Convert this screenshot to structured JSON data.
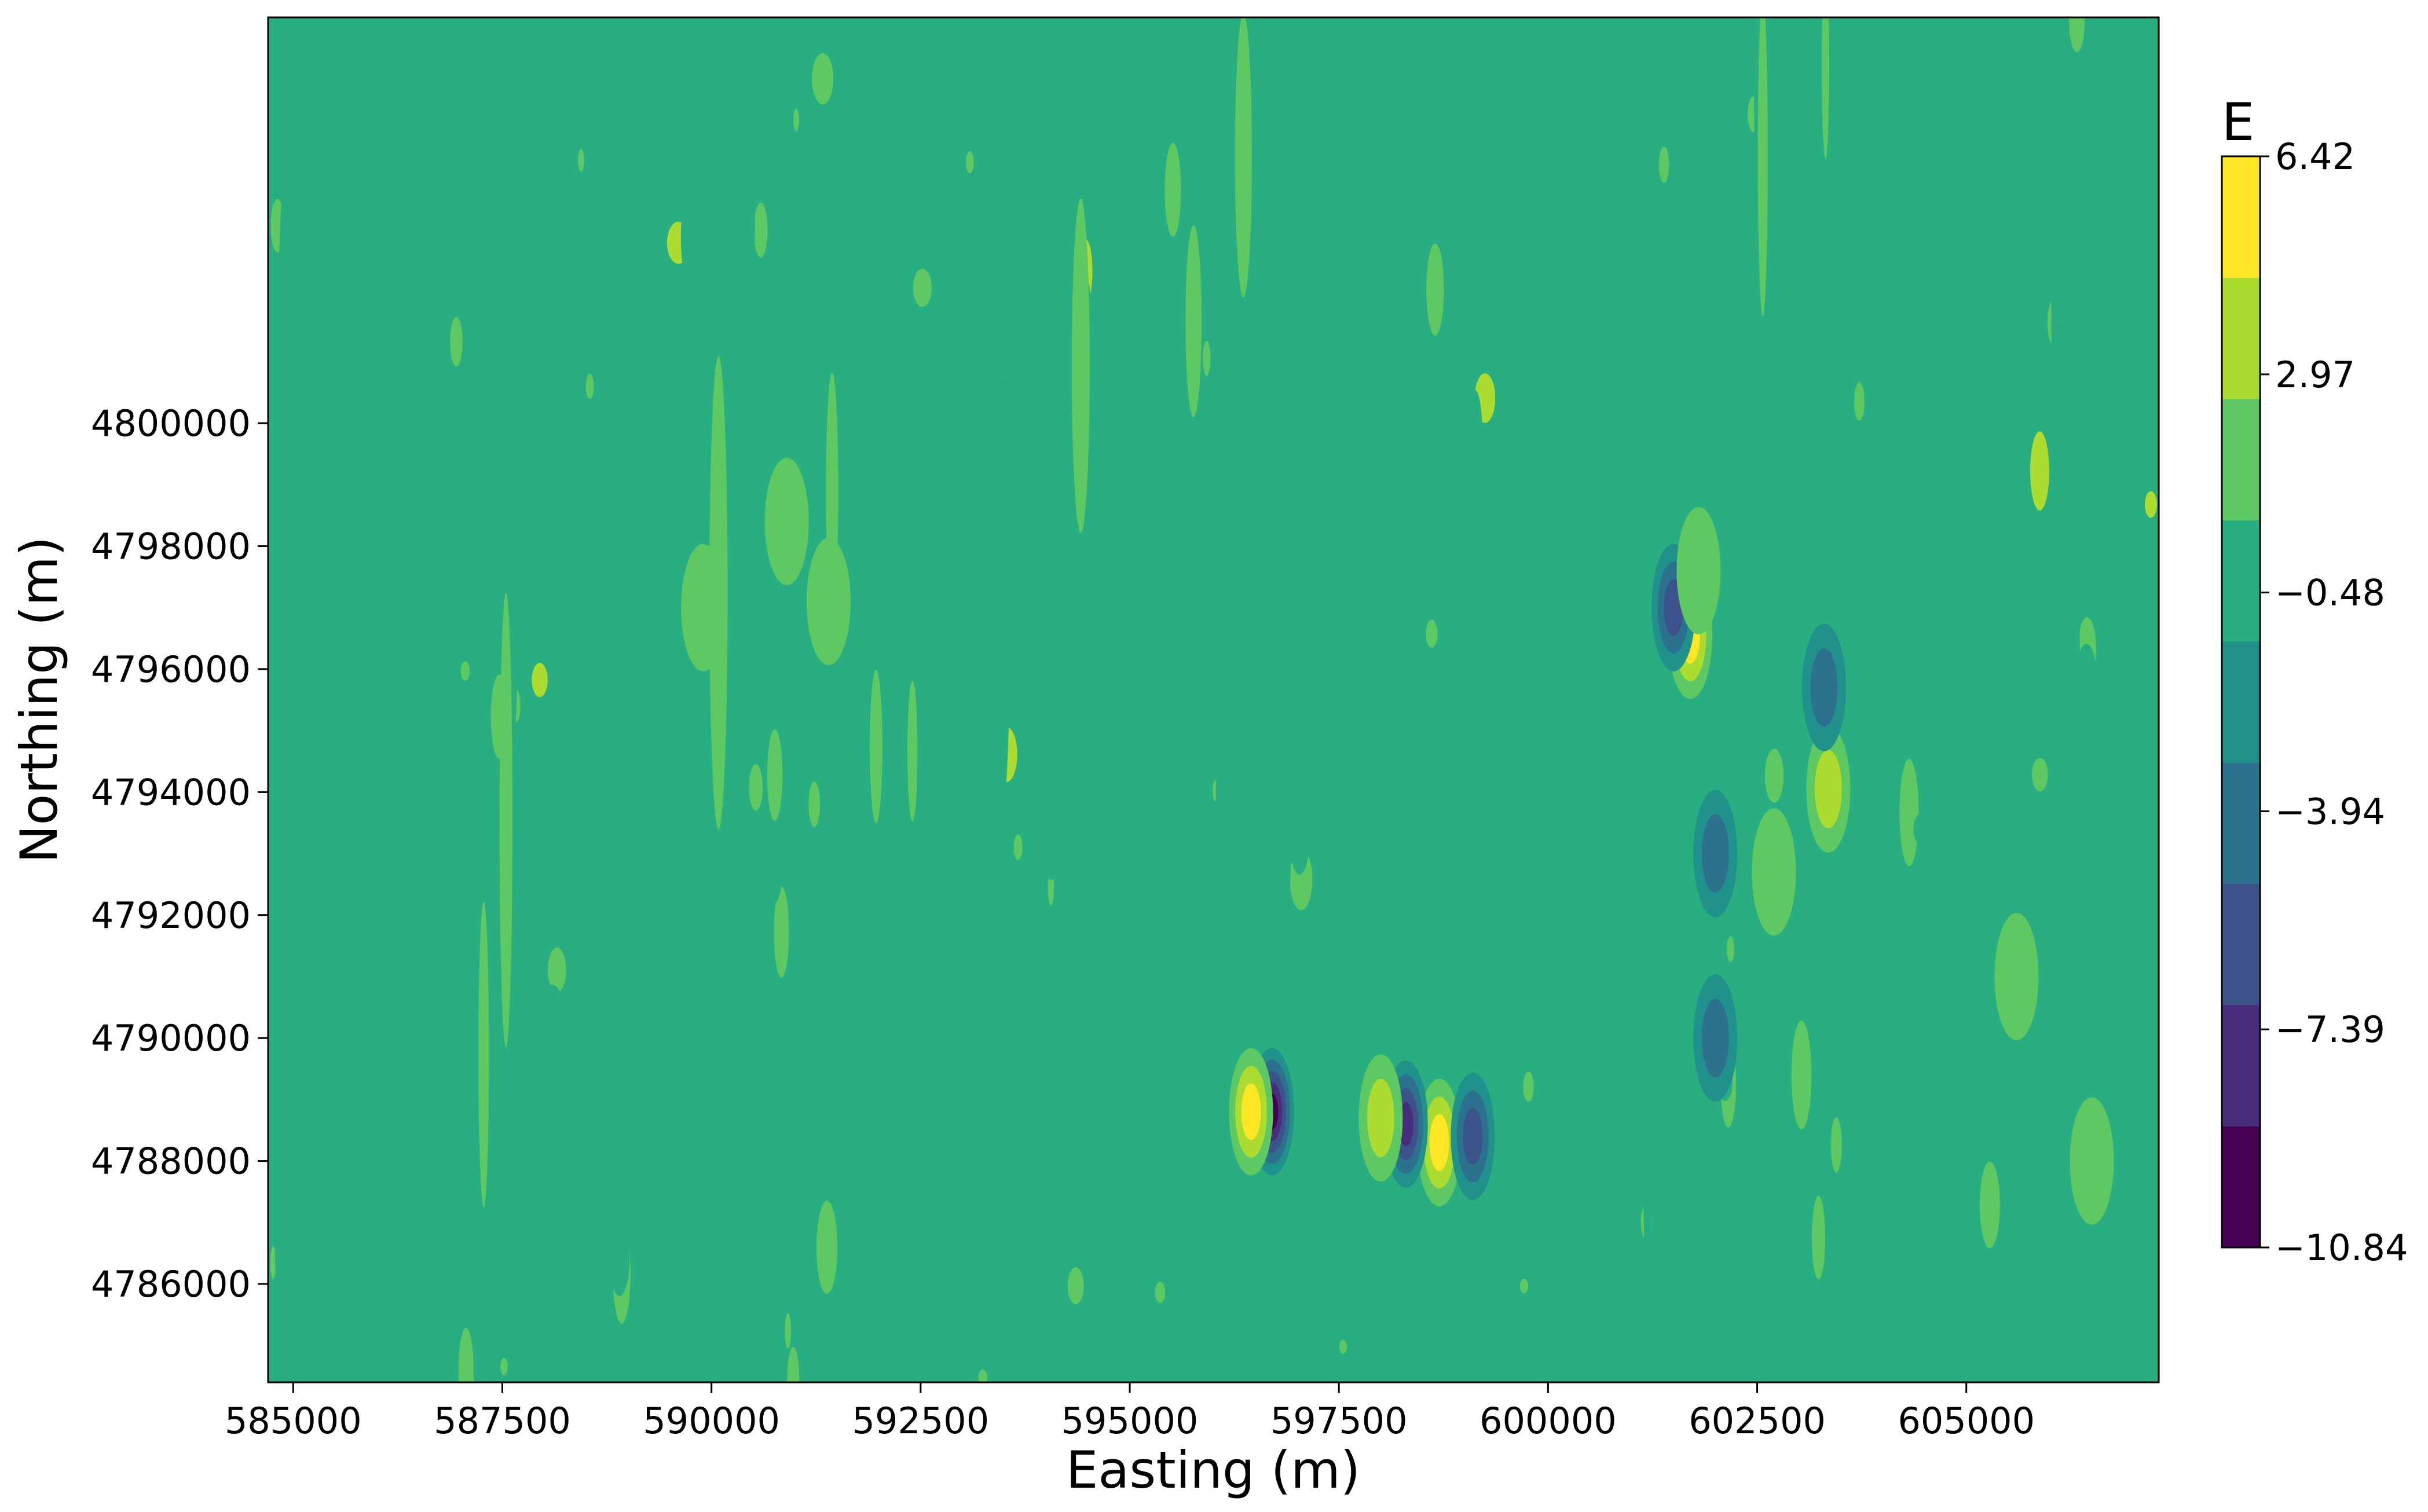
{
  "chart_data": {
    "type": "heatmap",
    "subtype": "filled-contour",
    "title": "",
    "xlabel": "Easting (m)",
    "ylabel": "Northing (m)",
    "xlim": [
      584700,
      607300
    ],
    "ylim": [
      4784400,
      4806600
    ],
    "x_ticks": [
      585000,
      587500,
      590000,
      592500,
      595000,
      597500,
      600000,
      602500,
      605000
    ],
    "x_tick_labels": [
      "585000",
      "587500",
      "590000",
      "592500",
      "595000",
      "597500",
      "600000",
      "602500",
      "605000"
    ],
    "y_ticks": [
      4786000,
      4788000,
      4790000,
      4792000,
      4794000,
      4796000,
      4798000,
      4800000
    ],
    "y_tick_labels": [
      "4786000",
      "4788000",
      "4790000",
      "4792000",
      "4794000",
      "4796000",
      "4798000",
      "4800000"
    ],
    "colorbar": {
      "title": "E",
      "min": -10.84,
      "max": 6.42,
      "tick_values": [
        -10.84,
        -7.39,
        -3.94,
        -0.48,
        2.97,
        6.42
      ],
      "tick_labels": [
        "−10.84",
        "−7.39",
        "−3.94",
        "−0.48",
        "2.97",
        "6.42"
      ],
      "level_colors": [
        "#440154",
        "#472d7b",
        "#3b528b",
        "#2c728e",
        "#21918c",
        "#28ae80",
        "#5ec962",
        "#addc30",
        "#fde725"
      ]
    },
    "background_level_value": 0.25,
    "grid": false,
    "features": [
      {
        "kind": "low",
        "x": 596700,
        "y": 4788800,
        "value": -10.0
      },
      {
        "kind": "high",
        "x": 596450,
        "y": 4788800,
        "value": 6.0
      },
      {
        "kind": "high",
        "x": 598700,
        "y": 4788300,
        "value": 6.0
      },
      {
        "kind": "low",
        "x": 598300,
        "y": 4788600,
        "value": -7.4
      },
      {
        "kind": "high",
        "x": 598000,
        "y": 4788700,
        "value": 4.3
      },
      {
        "kind": "low",
        "x": 599100,
        "y": 4788400,
        "value": -5.6
      },
      {
        "kind": "high",
        "x": 601700,
        "y": 4796550,
        "value": 6.0
      },
      {
        "kind": "low",
        "x": 601500,
        "y": 4797000,
        "value": -5.6
      },
      {
        "kind": "high",
        "x": 603350,
        "y": 4794050,
        "value": 4.6
      },
      {
        "kind": "low",
        "x": 603300,
        "y": 4795700,
        "value": -4.5
      },
      {
        "kind": "high",
        "x": 589900,
        "y": 4797000,
        "value": 2.5
      },
      {
        "kind": "high",
        "x": 591400,
        "y": 4797100,
        "value": 2.5
      },
      {
        "kind": "high",
        "x": 590900,
        "y": 4798400,
        "value": 2.5
      },
      {
        "kind": "low",
        "x": 602000,
        "y": 4793000,
        "value": -3.0
      },
      {
        "kind": "low",
        "x": 602000,
        "y": 4790000,
        "value": -3.0
      },
      {
        "kind": "high",
        "x": 602700,
        "y": 4792700,
        "value": 2.8
      },
      {
        "kind": "high",
        "x": 601800,
        "y": 4797600,
        "value": 3.0
      },
      {
        "kind": "high",
        "x": 605600,
        "y": 4791000,
        "value": 2.0
      },
      {
        "kind": "high",
        "x": 606500,
        "y": 4788000,
        "value": 2.0
      }
    ]
  }
}
